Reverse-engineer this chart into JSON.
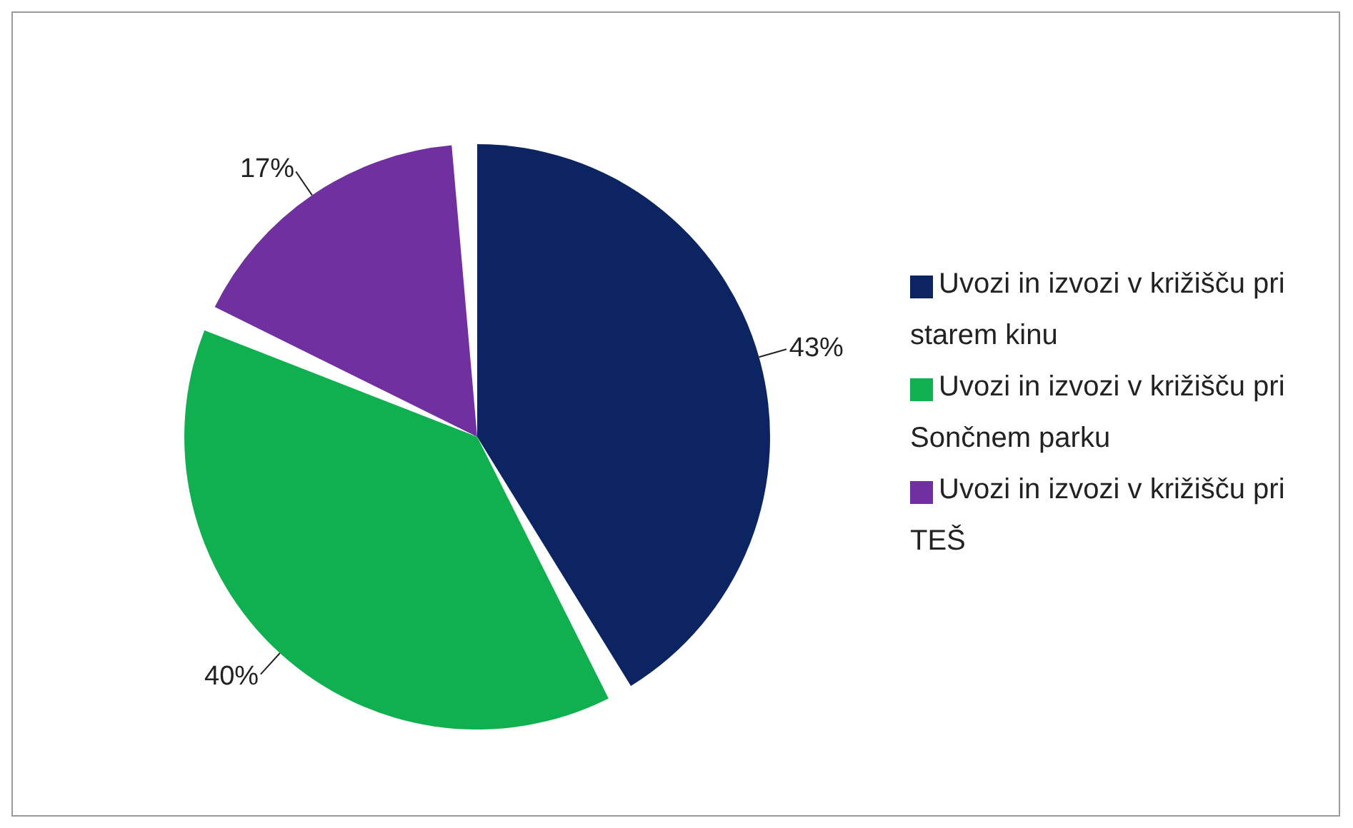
{
  "chart_data": {
    "type": "pie",
    "categories": [
      "Uvozi in izvozi v križišču pri starem kinu",
      "Uvozi in izvozi v križišču pri Sončnem parku",
      "Uvozi in izvozi v križišču pri TEŠ"
    ],
    "values": [
      43,
      40,
      17
    ],
    "value_labels": [
      "43%",
      "40%",
      "17%"
    ],
    "colors": [
      "#0c2461",
      "#10b050",
      "#7030a0"
    ],
    "legend": "right"
  }
}
